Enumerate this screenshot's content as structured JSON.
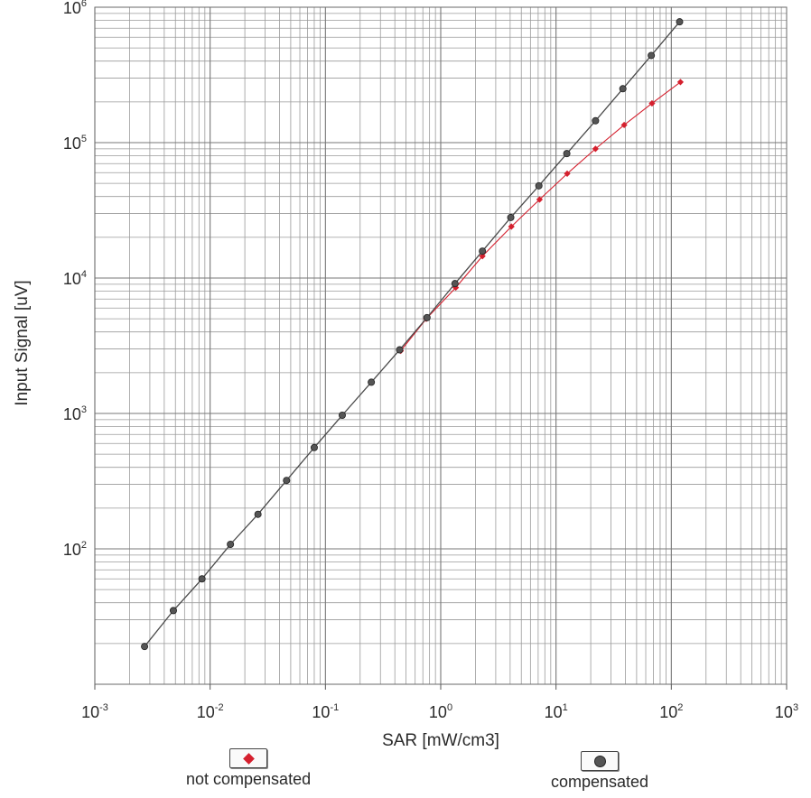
{
  "chart_data": {
    "type": "line",
    "title": "",
    "xlabel": "SAR [mW/cm3]",
    "ylabel": "Input Signal [uV]",
    "xscale": "log",
    "yscale": "log",
    "xlim": [
      0.001,
      1000
    ],
    "ylim": [
      10,
      1000000
    ],
    "x_ticks": [
      {
        "base": "10",
        "exp": "-3"
      },
      {
        "base": "10",
        "exp": "-2"
      },
      {
        "base": "10",
        "exp": "-1"
      },
      {
        "base": "10",
        "exp": "0"
      },
      {
        "base": "10",
        "exp": "1"
      },
      {
        "base": "10",
        "exp": "2"
      },
      {
        "base": "10",
        "exp": "3"
      }
    ],
    "y_ticks": [
      {
        "base": "10",
        "exp": "2"
      },
      {
        "base": "10",
        "exp": "3"
      },
      {
        "base": "10",
        "exp": "4"
      },
      {
        "base": "10",
        "exp": "5"
      },
      {
        "base": "10",
        "exp": "6"
      }
    ],
    "grid": true,
    "series": [
      {
        "name": "not compensated",
        "color": "#d5202e",
        "marker": "diamond",
        "x": [
          0.45,
          0.75,
          1.35,
          2.3,
          4.1,
          7.2,
          12.5,
          22,
          39,
          68,
          120
        ],
        "y": [
          2900,
          5000,
          8500,
          14500,
          24000,
          38000,
          59000,
          90000,
          135000,
          195000,
          280000
        ]
      },
      {
        "name": "compensated",
        "color": "#4a4a4a",
        "marker": "circle",
        "x": [
          0.0027,
          0.0048,
          0.0085,
          0.015,
          0.026,
          0.046,
          0.08,
          0.14,
          0.25,
          0.44,
          0.76,
          1.33,
          2.3,
          4.05,
          7.1,
          12.4,
          22,
          38,
          67,
          118
        ],
        "y": [
          19,
          35,
          60,
          108,
          180,
          320,
          560,
          970,
          1700,
          2950,
          5100,
          9100,
          15800,
          28000,
          48000,
          83000,
          145000,
          250000,
          440000,
          780000
        ]
      }
    ],
    "legend_placement": "bottom"
  }
}
